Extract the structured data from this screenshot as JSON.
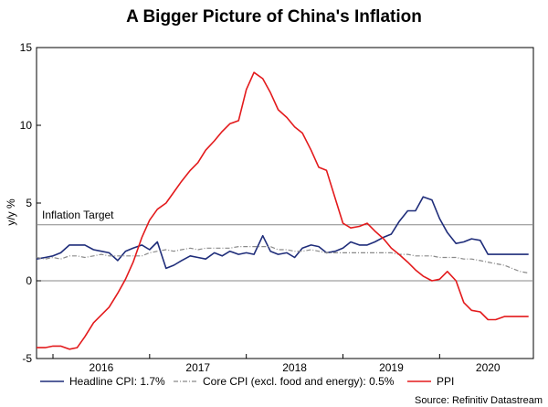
{
  "chart_data": {
    "type": "line",
    "title": "A Bigger Picture of China's Inflation",
    "ylabel": "y/y %",
    "xlabel": "",
    "ylim": [
      -5,
      15
    ],
    "xlim": [
      2015.33,
      2020.47
    ],
    "yticks": [
      -5,
      0,
      5,
      10,
      15
    ],
    "xtick_labels": [
      "2016",
      "2017",
      "2018",
      "2019",
      "2020"
    ],
    "xtick_values": [
      2016.0,
      2017.0,
      2018.0,
      2019.0,
      2020.0
    ],
    "year_boundaries": [
      2015.5,
      2016.5,
      2017.5,
      2018.5,
      2019.5
    ],
    "target": {
      "label": "Inflation Target",
      "value": 3.6
    },
    "zero_line": 0,
    "series": [
      {
        "key": "headline",
        "name": "Headline CPI",
        "legend_label": "Headline CPI: 1.7%",
        "color": "#1f2d7a",
        "style": "solid",
        "x": [
          2015.33,
          2015.42,
          2015.5,
          2015.58,
          2015.67,
          2015.75,
          2015.83,
          2015.92,
          2016.0,
          2016.08,
          2016.17,
          2016.25,
          2016.33,
          2016.42,
          2016.5,
          2016.58,
          2016.67,
          2016.75,
          2016.83,
          2016.92,
          2017.0,
          2017.08,
          2017.17,
          2017.25,
          2017.33,
          2017.42,
          2017.5,
          2017.58,
          2017.67,
          2017.75,
          2017.83,
          2017.92,
          2018.0,
          2018.08,
          2018.17,
          2018.25,
          2018.33,
          2018.42,
          2018.5,
          2018.58,
          2018.67,
          2018.75,
          2018.83,
          2018.92,
          2019.0,
          2019.08,
          2019.17,
          2019.25,
          2019.33,
          2019.42,
          2019.5,
          2019.58,
          2019.67,
          2019.75,
          2019.83,
          2019.92,
          2020.0,
          2020.08,
          2020.17,
          2020.25,
          2020.33,
          2020.42
        ],
        "values": [
          1.4,
          1.5,
          1.6,
          1.8,
          2.3,
          2.3,
          2.3,
          2.0,
          1.9,
          1.8,
          1.3,
          1.9,
          2.1,
          2.3,
          2.0,
          2.5,
          0.8,
          1.0,
          1.3,
          1.6,
          1.5,
          1.4,
          1.8,
          1.6,
          1.9,
          1.7,
          1.8,
          1.7,
          2.9,
          1.9,
          1.7,
          1.8,
          1.5,
          2.1,
          2.3,
          2.2,
          1.8,
          1.9,
          2.1,
          2.5,
          2.3,
          2.3,
          2.5,
          2.8,
          3.0,
          3.8,
          4.5,
          4.5,
          5.4,
          5.2,
          4.0,
          3.1,
          2.4,
          2.5,
          2.7,
          2.6,
          1.7,
          1.7,
          1.7,
          1.7,
          1.7,
          1.7
        ]
      },
      {
        "key": "core",
        "name": "Core CPI (excl. food and energy)",
        "legend_label": "Core CPI (excl. food and energy): 0.5%",
        "color": "#8a8a8a",
        "style": "dashdot",
        "x": [
          2015.33,
          2015.42,
          2015.5,
          2015.58,
          2015.67,
          2015.75,
          2015.83,
          2015.92,
          2016.0,
          2016.08,
          2016.17,
          2016.25,
          2016.33,
          2016.42,
          2016.5,
          2016.58,
          2016.67,
          2016.75,
          2016.83,
          2016.92,
          2017.0,
          2017.08,
          2017.17,
          2017.25,
          2017.33,
          2017.42,
          2017.5,
          2017.58,
          2017.67,
          2017.75,
          2017.83,
          2017.92,
          2018.0,
          2018.08,
          2018.17,
          2018.25,
          2018.33,
          2018.42,
          2018.5,
          2018.58,
          2018.67,
          2018.75,
          2018.83,
          2018.92,
          2019.0,
          2019.08,
          2019.17,
          2019.25,
          2019.33,
          2019.42,
          2019.5,
          2019.58,
          2019.67,
          2019.75,
          2019.83,
          2019.92,
          2020.0,
          2020.08,
          2020.17,
          2020.25,
          2020.33,
          2020.42
        ],
        "values": [
          1.5,
          1.4,
          1.5,
          1.4,
          1.6,
          1.6,
          1.5,
          1.6,
          1.7,
          1.6,
          1.6,
          1.6,
          1.6,
          1.6,
          1.8,
          1.9,
          2.0,
          1.9,
          2.0,
          2.1,
          2.0,
          2.1,
          2.1,
          2.1,
          2.1,
          2.2,
          2.2,
          2.2,
          2.2,
          2.2,
          2.0,
          2.0,
          1.9,
          1.9,
          2.0,
          1.9,
          1.8,
          1.8,
          1.8,
          1.8,
          1.8,
          1.8,
          1.8,
          1.8,
          1.8,
          1.7,
          1.7,
          1.6,
          1.6,
          1.6,
          1.5,
          1.5,
          1.5,
          1.4,
          1.4,
          1.3,
          1.2,
          1.1,
          1.0,
          0.8,
          0.6,
          0.5
        ]
      },
      {
        "key": "ppi",
        "name": "PPI",
        "legend_label": "PPI",
        "color": "#e31a1c",
        "style": "solid",
        "x": [
          2015.33,
          2015.42,
          2015.5,
          2015.58,
          2015.67,
          2015.75,
          2015.83,
          2015.92,
          2016.0,
          2016.08,
          2016.17,
          2016.25,
          2016.33,
          2016.42,
          2016.5,
          2016.58,
          2016.67,
          2016.75,
          2016.83,
          2016.92,
          2017.0,
          2017.08,
          2017.17,
          2017.25,
          2017.33,
          2017.42,
          2017.5,
          2017.58,
          2017.67,
          2017.75,
          2017.83,
          2017.92,
          2018.0,
          2018.08,
          2018.17,
          2018.25,
          2018.33,
          2018.42,
          2018.5,
          2018.58,
          2018.67,
          2018.75,
          2018.83,
          2018.92,
          2019.0,
          2019.08,
          2019.17,
          2019.25,
          2019.33,
          2019.42,
          2019.5,
          2019.58,
          2019.67,
          2019.75,
          2019.83,
          2019.92,
          2020.0,
          2020.08,
          2020.17,
          2020.25,
          2020.33,
          2020.42
        ],
        "values": [
          -4.3,
          -4.3,
          -4.2,
          -4.2,
          -4.4,
          -4.3,
          -3.6,
          -2.7,
          -2.2,
          -1.7,
          -0.8,
          0.1,
          1.2,
          2.8,
          3.9,
          4.6,
          5.0,
          5.7,
          6.4,
          7.1,
          7.6,
          8.4,
          9.0,
          9.6,
          10.1,
          10.3,
          12.3,
          13.4,
          13.0,
          12.1,
          11.0,
          10.5,
          9.9,
          9.5,
          8.4,
          7.3,
          7.1,
          5.3,
          3.7,
          3.4,
          3.5,
          3.7,
          3.2,
          2.7,
          2.1,
          1.7,
          1.2,
          0.7,
          0.3,
          0.0,
          0.1,
          0.6,
          0.0,
          -1.4,
          -1.9,
          -2.0,
          -2.5,
          -2.5,
          -2.3,
          -2.3,
          -2.3,
          -2.3
        ]
      }
    ],
    "source": "Source: Refinitiv Datastream"
  }
}
